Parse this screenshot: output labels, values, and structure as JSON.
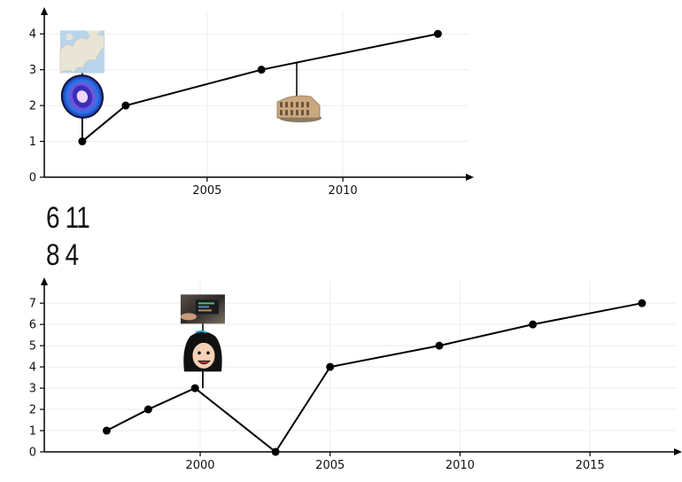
{
  "chart_data": [
    {
      "type": "line",
      "x": [
        2000.4,
        2002.0,
        2007.0,
        2013.5
      ],
      "values": [
        1,
        2,
        3,
        4
      ],
      "xlim": [
        1999.0,
        2014.5
      ],
      "ylim": [
        0,
        4.5
      ],
      "xticks": [
        2005,
        2010
      ],
      "yticks": [
        0,
        1,
        2,
        3,
        4
      ],
      "grid": true,
      "title": "",
      "xlabel": "",
      "ylabel": "",
      "annotations": [
        {
          "icon": "map-of-europe-icon",
          "x": 2000.4,
          "y": 3.5
        },
        {
          "icon": "galaxy-icon",
          "x": 2000.4,
          "y": 2.25
        },
        {
          "icon": "colosseum-icon",
          "x": 2008.3,
          "y": 1.95
        }
      ]
    },
    {
      "type": "line",
      "x": [
        1996.4,
        1998.0,
        1999.8,
        2002.9,
        2005.0,
        2009.2,
        2012.8,
        2017.0
      ],
      "values": [
        1,
        2,
        3,
        0,
        4,
        5,
        6,
        7
      ],
      "xlim": [
        1994.0,
        2018.2
      ],
      "ylim": [
        0,
        7.8
      ],
      "xticks": [
        2000,
        2005,
        2010,
        2015
      ],
      "yticks": [
        0,
        1,
        2,
        3,
        4,
        5,
        6,
        7
      ],
      "grid": true,
      "title": "",
      "xlabel": "",
      "ylabel": "",
      "annotations": [
        {
          "icon": "laptop-photo-icon",
          "x": 2000.1,
          "y": 6.7
        },
        {
          "icon": "cartoon-girl-icon",
          "x": 2000.1,
          "y": 4.7
        }
      ]
    }
  ],
  "middle_text": {
    "line1": "6 11",
    "line2": "8 4"
  }
}
